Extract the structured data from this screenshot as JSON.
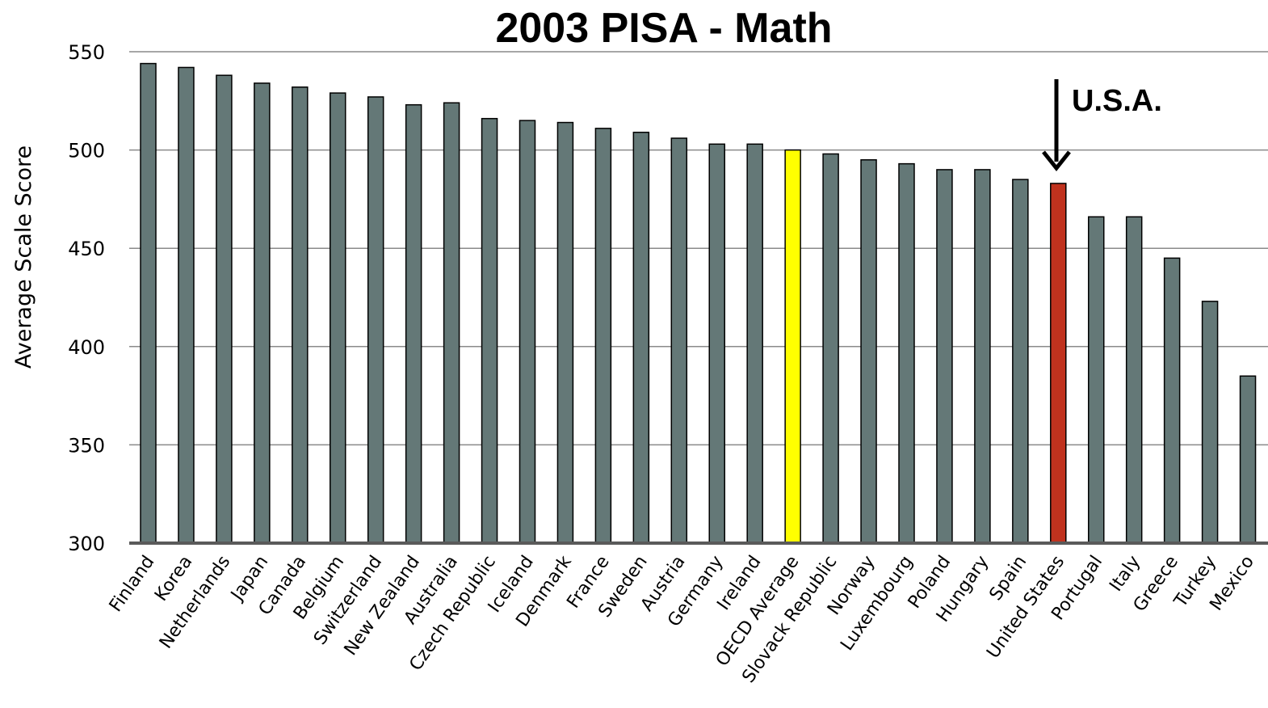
{
  "chart_data": {
    "type": "bar",
    "title": "2003 PISA - Math",
    "xlabel": "",
    "ylabel": "Average Scale Score",
    "ylim": [
      300,
      550
    ],
    "yticks": [
      300,
      350,
      400,
      450,
      500,
      550
    ],
    "grid": true,
    "categories": [
      "Finland",
      "Korea",
      "Netherlands",
      "Japan",
      "Canada",
      "Belgium",
      "Switzerland",
      "New Zealand",
      "Australia",
      "Czech Republic",
      "Iceland",
      "Denmark",
      "France",
      "Sweden",
      "Austria",
      "Germany",
      "Ireland",
      "OECD Average",
      "Slovack Republic",
      "Norway",
      "Luxembourg",
      "Poland",
      "Hungary",
      "Spain",
      "United States",
      "Portugal",
      "Italy",
      "Greece",
      "Turkey",
      "Mexico"
    ],
    "values": [
      544,
      542,
      538,
      534,
      532,
      529,
      527,
      523,
      524,
      516,
      515,
      514,
      511,
      509,
      506,
      503,
      503,
      500,
      498,
      495,
      493,
      490,
      490,
      485,
      483,
      466,
      466,
      445,
      423,
      385
    ],
    "colors": {
      "default": "#647877",
      "highlights": {
        "OECD Average": "#ffff00",
        "United States": "#c0321e"
      }
    },
    "annotation": {
      "text": "U.S.A.",
      "target": "United States",
      "arrow": "down"
    }
  }
}
